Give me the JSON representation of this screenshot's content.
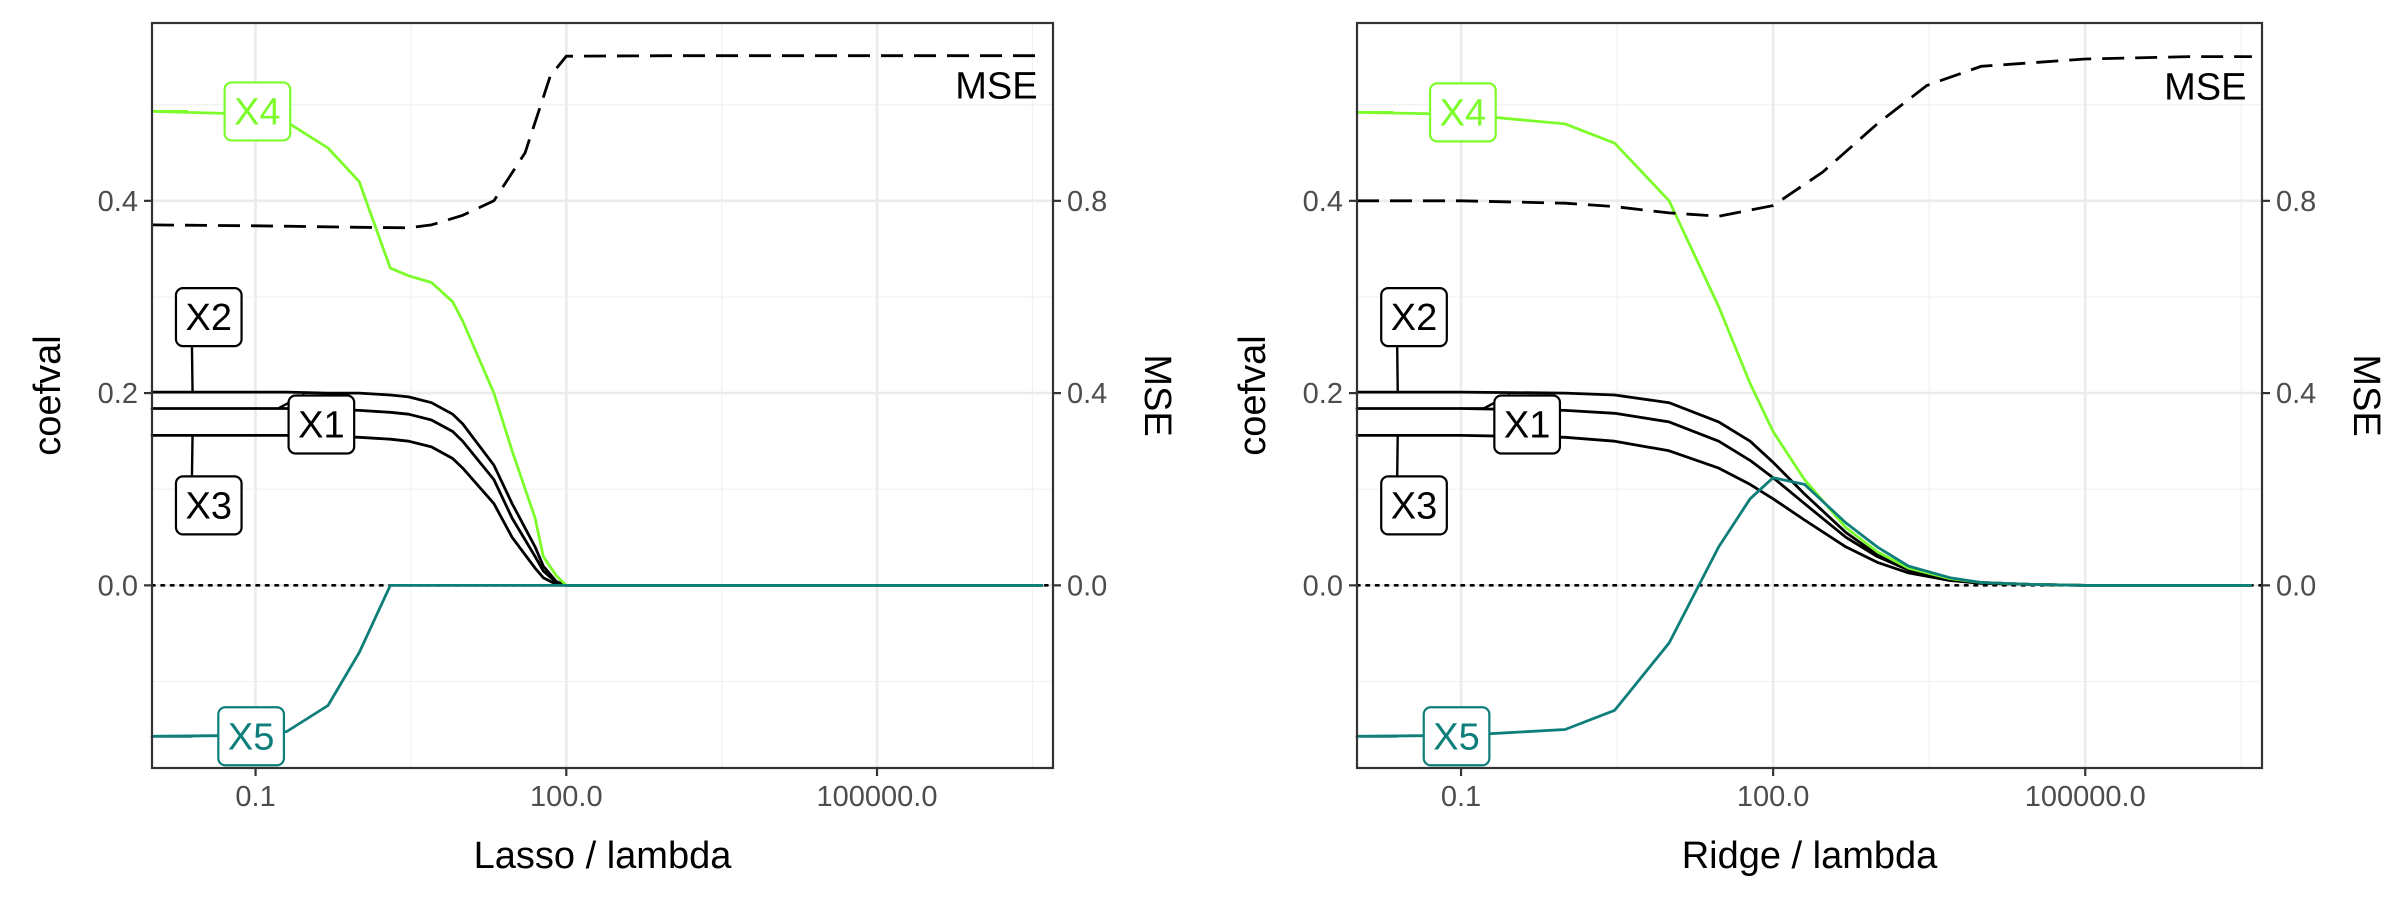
{
  "chart_data": [
    {
      "type": "line",
      "panel": "left",
      "title": "",
      "xlabel": "Lasso / lambda",
      "ylabel": "coefval",
      "y2label": "MSE",
      "x_scale": "log10",
      "xlim": [
        0.01,
        5000000
      ],
      "ylim": [
        -0.19,
        0.585
      ],
      "y2lim": [
        -0.38,
        1.17
      ],
      "xticks": [
        0.1,
        100,
        100000
      ],
      "xtick_labels": [
        "0.1",
        "100.0",
        "100000.0"
      ],
      "yticks": [
        0.0,
        0.2,
        0.4
      ],
      "ytick_labels": [
        "0.0",
        "0.2",
        "0.4"
      ],
      "y2ticks": [
        0.0,
        0.4,
        0.8
      ],
      "y2tick_labels": [
        "0.0",
        "0.4",
        "0.8"
      ],
      "grid": true,
      "zero_line": "dotted",
      "x": [
        0.01,
        0.1,
        0.2,
        0.5,
        1,
        2,
        3,
        5,
        8,
        10,
        20,
        30,
        50,
        60,
        80,
        100,
        200,
        1000,
        10000,
        100000,
        1000000,
        4000000
      ],
      "series": [
        {
          "name": "X1",
          "color": "#000000",
          "values": [
            0.184,
            0.184,
            0.184,
            0.183,
            0.182,
            0.18,
            0.178,
            0.172,
            0.16,
            0.15,
            0.11,
            0.07,
            0.03,
            0.015,
            0.003,
            0.0,
            0.0,
            0.0,
            0.0,
            0.0,
            0.0,
            0.0
          ]
        },
        {
          "name": "X2",
          "color": "#000000",
          "values": [
            0.201,
            0.201,
            0.201,
            0.2,
            0.2,
            0.198,
            0.196,
            0.19,
            0.178,
            0.168,
            0.125,
            0.085,
            0.04,
            0.02,
            0.004,
            0.0,
            0.0,
            0.0,
            0.0,
            0.0,
            0.0,
            0.0
          ]
        },
        {
          "name": "X3",
          "color": "#000000",
          "values": [
            0.156,
            0.156,
            0.156,
            0.155,
            0.154,
            0.152,
            0.15,
            0.144,
            0.132,
            0.122,
            0.085,
            0.05,
            0.018,
            0.008,
            0.001,
            0.0,
            0.0,
            0.0,
            0.0,
            0.0,
            0.0,
            0.0
          ]
        },
        {
          "name": "X4",
          "color": "#7cfc2a",
          "values": [
            0.493,
            0.49,
            0.482,
            0.455,
            0.42,
            0.33,
            0.322,
            0.315,
            0.295,
            0.275,
            0.2,
            0.14,
            0.07,
            0.03,
            0.01,
            0.0,
            0.0,
            0.0,
            0.0,
            0.0,
            0.0,
            0.0
          ]
        },
        {
          "name": "X5",
          "color": "#0e7e7b",
          "values": [
            -0.157,
            -0.156,
            -0.152,
            -0.125,
            -0.07,
            0.0,
            0.0,
            0.0,
            0.0,
            0.0,
            0.0,
            0.0,
            0.0,
            0.0,
            0.0,
            0.0,
            0.0,
            0.0,
            0.0,
            0.0,
            0.0,
            0.0
          ]
        }
      ],
      "mse": {
        "name": "MSE",
        "axis": "right",
        "dash": "dashed",
        "color": "#000000",
        "x": [
          0.01,
          0.1,
          1,
          3,
          5,
          10,
          20,
          40,
          70,
          100,
          1000,
          10000,
          100000,
          1000000,
          4000000
        ],
        "values": [
          0.75,
          0.748,
          0.745,
          0.744,
          0.75,
          0.77,
          0.8,
          0.9,
          1.06,
          1.101,
          1.102,
          1.102,
          1.102,
          1.102,
          1.102
        ]
      },
      "labels": [
        {
          "text": "X4",
          "series": "X4"
        },
        {
          "text": "X2",
          "series": "X2"
        },
        {
          "text": "X1",
          "series": "X1"
        },
        {
          "text": "X3",
          "series": "X3"
        },
        {
          "text": "X5",
          "series": "X5"
        },
        {
          "text": "MSE",
          "series": "MSE"
        }
      ]
    },
    {
      "type": "line",
      "panel": "right",
      "title": "",
      "xlabel": "Ridge / lambda",
      "ylabel": "coefval",
      "y2label": "MSE",
      "x_scale": "log10",
      "xlim": [
        0.01,
        5000000
      ],
      "ylim": [
        -0.19,
        0.585
      ],
      "y2lim": [
        -0.38,
        1.17
      ],
      "xticks": [
        0.1,
        100,
        100000
      ],
      "xtick_labels": [
        "0.1",
        "100.0",
        "100000.0"
      ],
      "yticks": [
        0.0,
        0.2,
        0.4
      ],
      "ytick_labels": [
        "0.0",
        "0.2",
        "0.4"
      ],
      "y2ticks": [
        0.0,
        0.4,
        0.8
      ],
      "y2tick_labels": [
        "0.0",
        "0.4",
        "0.8"
      ],
      "grid": true,
      "zero_line": "dotted",
      "x": [
        0.01,
        0.1,
        1,
        3,
        10,
        30,
        60,
        100,
        200,
        500,
        1000,
        2000,
        5000,
        10000,
        30000,
        100000,
        1000000,
        4000000
      ],
      "series": [
        {
          "name": "X1",
          "color": "#000000",
          "values": [
            0.184,
            0.184,
            0.182,
            0.179,
            0.17,
            0.15,
            0.13,
            0.112,
            0.085,
            0.05,
            0.03,
            0.016,
            0.006,
            0.003,
            0.001,
            0.0,
            0.0,
            0.0
          ]
        },
        {
          "name": "X2",
          "color": "#000000",
          "values": [
            0.201,
            0.201,
            0.2,
            0.198,
            0.19,
            0.17,
            0.15,
            0.128,
            0.095,
            0.055,
            0.032,
            0.017,
            0.007,
            0.003,
            0.001,
            0.0,
            0.0,
            0.0
          ]
        },
        {
          "name": "X3",
          "color": "#000000",
          "values": [
            0.156,
            0.156,
            0.154,
            0.15,
            0.14,
            0.122,
            0.105,
            0.09,
            0.068,
            0.04,
            0.024,
            0.013,
            0.005,
            0.002,
            0.001,
            0.0,
            0.0,
            0.0
          ]
        },
        {
          "name": "X4",
          "color": "#7cfc2a",
          "values": [
            0.492,
            0.49,
            0.48,
            0.46,
            0.4,
            0.29,
            0.21,
            0.16,
            0.11,
            0.06,
            0.035,
            0.018,
            0.007,
            0.003,
            0.001,
            0.0,
            0.0,
            0.0
          ]
        },
        {
          "name": "X5",
          "color": "#0e7e7b",
          "values": [
            -0.157,
            -0.156,
            -0.15,
            -0.13,
            -0.06,
            0.04,
            0.09,
            0.112,
            0.105,
            0.065,
            0.04,
            0.02,
            0.008,
            0.003,
            0.001,
            0.0,
            0.0,
            0.0
          ]
        }
      ],
      "mse": {
        "name": "MSE",
        "axis": "right",
        "dash": "dashed",
        "color": "#000000",
        "x": [
          0.01,
          0.1,
          1,
          3,
          10,
          30,
          100,
          300,
          1000,
          3000,
          10000,
          100000,
          1000000,
          4000000
        ],
        "values": [
          0.8,
          0.8,
          0.795,
          0.788,
          0.775,
          0.768,
          0.79,
          0.86,
          0.96,
          1.04,
          1.08,
          1.095,
          1.1,
          1.1
        ]
      },
      "labels": [
        {
          "text": "X4",
          "series": "X4"
        },
        {
          "text": "X2",
          "series": "X2"
        },
        {
          "text": "X1",
          "series": "X1"
        },
        {
          "text": "X3",
          "series": "X3"
        },
        {
          "text": "X5",
          "series": "X5"
        },
        {
          "text": "MSE",
          "series": "MSE"
        }
      ]
    }
  ]
}
